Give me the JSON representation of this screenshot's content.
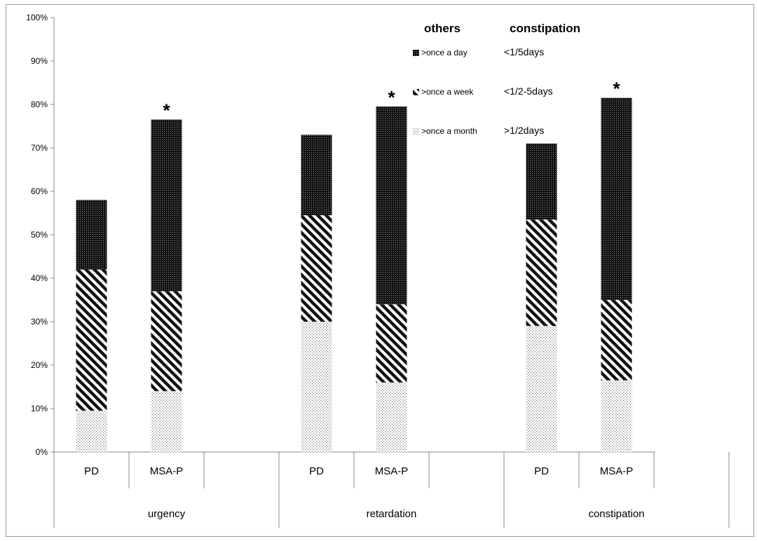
{
  "chart_data": {
    "type": "bar",
    "stacked": true,
    "title": "",
    "xlabel": "",
    "ylabel": "",
    "ylim": [
      0,
      100
    ],
    "y_unit": "%",
    "y_ticks": [
      "0%",
      "10%",
      "20%",
      "30%",
      "40%",
      "50%",
      "60%",
      "70%",
      "80%",
      "90%",
      "100%"
    ],
    "groups": [
      {
        "name": "urgency",
        "categories": [
          "PD",
          "MSA-P"
        ]
      },
      {
        "name": "retardation",
        "categories": [
          "PD",
          "MSA-P"
        ]
      },
      {
        "name": "constipation",
        "categories": [
          "PD",
          "MSA-P"
        ]
      }
    ],
    "bars": [
      {
        "group": "urgency",
        "category": "PD",
        "values": [
          9.5,
          32.5,
          16
        ],
        "total": 58,
        "marker": ""
      },
      {
        "group": "urgency",
        "category": "MSA-P",
        "values": [
          14,
          23,
          39.5
        ],
        "total": 76.5,
        "marker": "*"
      },
      {
        "group": "retardation",
        "category": "PD",
        "values": [
          30,
          24.5,
          18.5
        ],
        "total": 73,
        "marker": ""
      },
      {
        "group": "retardation",
        "category": "MSA-P",
        "values": [
          16,
          18,
          45.5
        ],
        "total": 79.5,
        "marker": "*"
      },
      {
        "group": "constipation",
        "category": "PD",
        "values": [
          29,
          24.5,
          17.5
        ],
        "total": 71,
        "marker": ""
      },
      {
        "group": "constipation",
        "category": "MSA-P",
        "values": [
          16.5,
          18.5,
          46.5
        ],
        "total": 81.5,
        "marker": "*"
      }
    ],
    "legend": {
      "placement": "top-right",
      "col_titles": [
        "others",
        "constipation"
      ],
      "entries": [
        {
          "pattern": "dense",
          "others": ">once a day",
          "constipation": "<1/5days"
        },
        {
          "pattern": "stripes",
          "others": ">once a week",
          "constipation": "<1/2-5days"
        },
        {
          "pattern": "dots",
          "others": ">once a month",
          "constipation": ">1/2days"
        }
      ]
    },
    "series": [
      {
        "pattern": "dots"
      },
      {
        "pattern": "stripes"
      },
      {
        "pattern": "dense"
      }
    ],
    "grid": false
  }
}
